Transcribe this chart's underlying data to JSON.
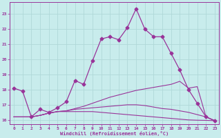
{
  "background_color": "#c8ecec",
  "grid_color": "#b0d8d8",
  "line_color": "#993399",
  "xlabel": "Windchill (Refroidissement éolien,°C)",
  "xlim": [
    -0.5,
    23.5
  ],
  "ylim": [
    15.7,
    23.8
  ],
  "yticks": [
    16,
    17,
    18,
    19,
    20,
    21,
    22,
    23
  ],
  "xticks": [
    0,
    1,
    2,
    3,
    4,
    5,
    6,
    7,
    8,
    9,
    10,
    11,
    12,
    13,
    14,
    15,
    16,
    17,
    18,
    19,
    20,
    21,
    22,
    23
  ],
  "line1_x": [
    0,
    1,
    2,
    3,
    4,
    5,
    6,
    7,
    8,
    9,
    10,
    11,
    12,
    13,
    14,
    15,
    16,
    17,
    18,
    19,
    20,
    21,
    22,
    23
  ],
  "line1_y": [
    18.1,
    17.9,
    16.2,
    16.7,
    16.5,
    16.8,
    17.2,
    18.6,
    18.35,
    19.9,
    21.35,
    21.5,
    21.3,
    22.1,
    23.35,
    22.0,
    21.5,
    21.5,
    20.4,
    19.3,
    18.0,
    17.1,
    16.2,
    15.95
  ],
  "line2_x": [
    0,
    1,
    2,
    3,
    4,
    5,
    6,
    7,
    8,
    9,
    10,
    11,
    12,
    13,
    14,
    15,
    16,
    17,
    18,
    19,
    20,
    21,
    22,
    23
  ],
  "line2_y": [
    16.2,
    16.2,
    16.2,
    16.3,
    16.45,
    16.55,
    16.6,
    16.75,
    16.9,
    17.1,
    17.3,
    17.5,
    17.65,
    17.8,
    17.95,
    18.05,
    18.15,
    18.25,
    18.35,
    18.55,
    18.1,
    18.2,
    16.2,
    15.95
  ],
  "line3_x": [
    0,
    1,
    2,
    3,
    4,
    5,
    6,
    7,
    8,
    9,
    10,
    11,
    12,
    13,
    14,
    15,
    16,
    17,
    18,
    19,
    20,
    21,
    22,
    23
  ],
  "line3_y": [
    16.2,
    16.2,
    16.2,
    16.3,
    16.45,
    16.55,
    16.6,
    16.7,
    16.75,
    16.8,
    16.85,
    16.9,
    16.95,
    17.0,
    17.0,
    16.95,
    16.85,
    16.75,
    16.7,
    16.6,
    16.5,
    16.35,
    16.2,
    15.95
  ],
  "line4_x": [
    0,
    1,
    2,
    3,
    4,
    5,
    6,
    7,
    8,
    9,
    10,
    11,
    12,
    13,
    14,
    15,
    16,
    17,
    18,
    19,
    20,
    21,
    22,
    23
  ],
  "line4_y": [
    16.2,
    16.2,
    16.2,
    16.3,
    16.45,
    16.55,
    16.55,
    16.55,
    16.55,
    16.55,
    16.5,
    16.45,
    16.4,
    16.35,
    16.3,
    16.25,
    16.2,
    16.15,
    16.1,
    16.05,
    16.0,
    15.98,
    15.97,
    15.95
  ]
}
